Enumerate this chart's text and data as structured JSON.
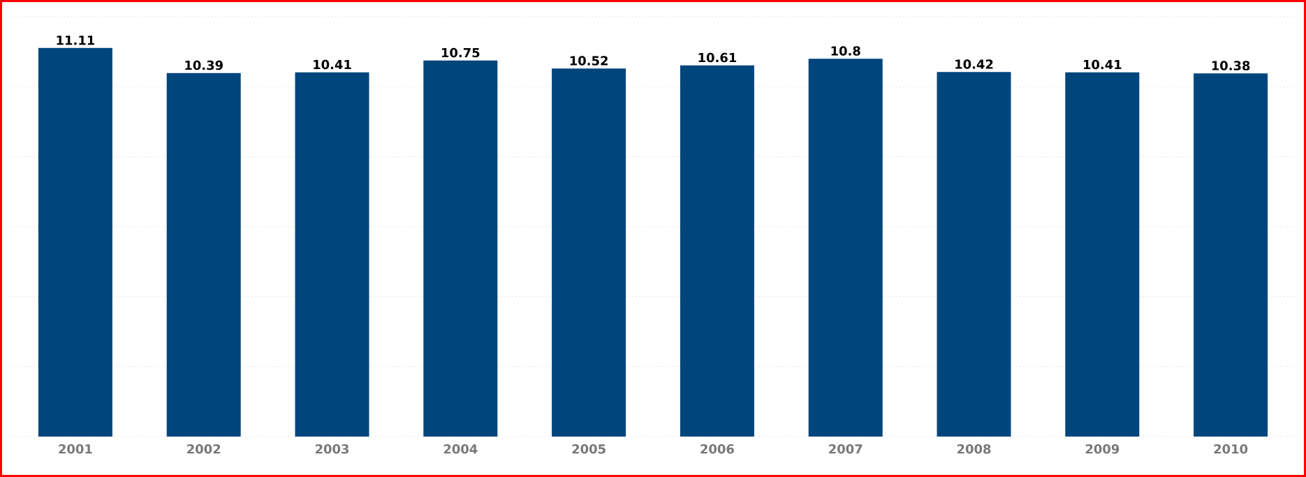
{
  "chart_data": {
    "type": "bar",
    "categories": [
      "2001",
      "2002",
      "2003",
      "2004",
      "2005",
      "2006",
      "2007",
      "2008",
      "2009",
      "2010"
    ],
    "values": [
      11.11,
      10.39,
      10.41,
      10.75,
      10.52,
      10.61,
      10.8,
      10.42,
      10.41,
      10.38
    ],
    "color": "#00457c",
    "ylim": [
      0,
      12
    ],
    "yticks": [
      {
        "value": 0,
        "label": null
      },
      {
        "value": 2,
        "label": null
      },
      {
        "value": 4,
        "label": null
      },
      {
        "value": 6,
        "label": null
      },
      {
        "value": 8,
        "label": null
      },
      {
        "value": 10,
        "label": null
      },
      {
        "value": 12,
        "label": null
      }
    ],
    "grid": "y",
    "data_labels": true,
    "tick_labels": "x"
  }
}
